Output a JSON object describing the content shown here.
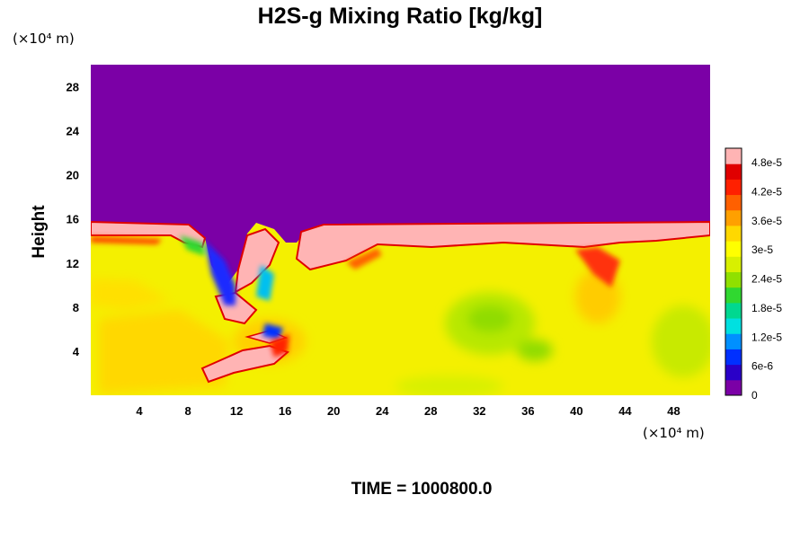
{
  "chart_data": {
    "type": "heatmap",
    "title": "H2S-g Mixing Ratio [kg/kg]",
    "xlabel": "",
    "ylabel": "Height",
    "x_unit": "(×10⁴ m)",
    "y_unit": "(×10⁴ m)",
    "x_ticks": [
      "4",
      "8",
      "12",
      "16",
      "20",
      "24",
      "28",
      "32",
      "36",
      "40",
      "44",
      "48"
    ],
    "y_ticks": [
      "4",
      "8",
      "12",
      "16",
      "20",
      "24",
      "28"
    ],
    "xlim": [
      0,
      51
    ],
    "ylim": [
      0,
      30
    ],
    "colorbar": {
      "labels": [
        "0",
        "6e-6",
        "1.2e-5",
        "1.8e-5",
        "2.4e-5",
        "3e-5",
        "3.6e-5",
        "4.2e-5",
        "4.8e-5"
      ],
      "range": [
        0,
        5.1e-05
      ],
      "colors": [
        "#7b00a6",
        "#2a00c8",
        "#0030ff",
        "#0090ff",
        "#00e0e0",
        "#00d890",
        "#30d830",
        "#90e000",
        "#d8f000",
        "#ffff00",
        "#ffd800",
        "#ffa000",
        "#ff6000",
        "#ff2000",
        "#e00000",
        "#ffb4b4"
      ]
    },
    "regions": {
      "upper_layer_value": 0,
      "lower_layer_value_range": [
        3e-05,
        3.8e-05
      ],
      "interface_height": 15.5,
      "interface_value": 5.1e-05
    },
    "grid": false,
    "legend": "right"
  },
  "footer_text": "TIME = 1000800.0"
}
